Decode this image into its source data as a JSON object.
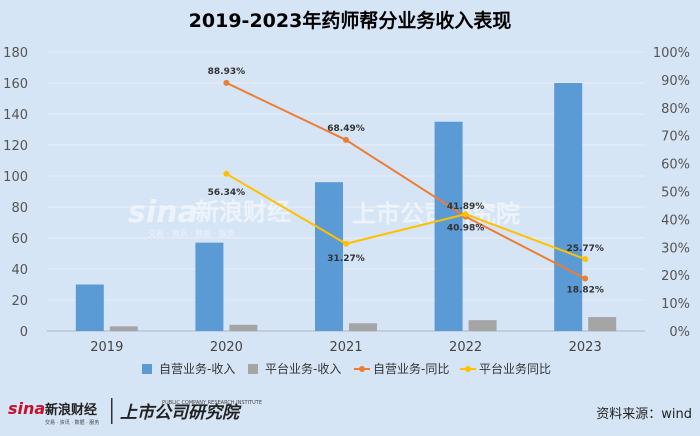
{
  "chart_data": {
    "type": "bar",
    "title": "2019-2023年药师帮分业务收入表现",
    "categories": [
      "2019",
      "2020",
      "2021",
      "2022",
      "2023"
    ],
    "series": [
      {
        "name": "自营业务-收入",
        "kind": "bar",
        "axis": "left",
        "color": "#5b9bd5",
        "values": [
          30,
          57,
          96,
          135,
          160
        ]
      },
      {
        "name": "平台业务-收入",
        "kind": "bar",
        "axis": "left",
        "color": "#a5a5a5",
        "values": [
          3,
          4,
          5,
          7,
          9
        ]
      },
      {
        "name": "自营业务-同比",
        "kind": "line",
        "axis": "right",
        "color": "#ed7d31",
        "values": [
          null,
          88.93,
          68.49,
          40.98,
          18.82
        ],
        "labels": [
          null,
          "88.93%",
          "68.49%",
          "40.98%",
          "18.82%"
        ]
      },
      {
        "name": "平台业务同比",
        "kind": "line",
        "axis": "right",
        "color": "#ffc000",
        "values": [
          null,
          56.34,
          31.27,
          41.89,
          25.77
        ],
        "labels": [
          null,
          "56.34%",
          "31.27%",
          "41.89%",
          "25.77%"
        ]
      }
    ],
    "ylim_left": [
      0,
      180
    ],
    "yticks_left": [
      "0",
      "20",
      "40",
      "60",
      "80",
      "100",
      "120",
      "140",
      "160",
      "180"
    ],
    "ylim_right": [
      0,
      100
    ],
    "yticks_right": [
      "0%",
      "10%",
      "20%",
      "30%",
      "40%",
      "50%",
      "60%",
      "70%",
      "80%",
      "90%",
      "100%"
    ],
    "grid": true,
    "legend": "bottom"
  },
  "watermark": {
    "sina": "sina",
    "sina_cn": "新浪财经",
    "sina_sub": "交易 · 资讯 · 数据 · 服务",
    "scp": "上市公司研究院"
  },
  "footer": {
    "logo_sina": "sina",
    "logo_sina_cn": "新浪财经",
    "logo_sina_sub": "交易 · 资讯 · 数据 · 服务",
    "logo_scp": "上市公司研究院",
    "logo_scp_sub": "PUBLIC COMPANY RESEARCH INSTITUTE",
    "source": "资料来源：wind"
  }
}
